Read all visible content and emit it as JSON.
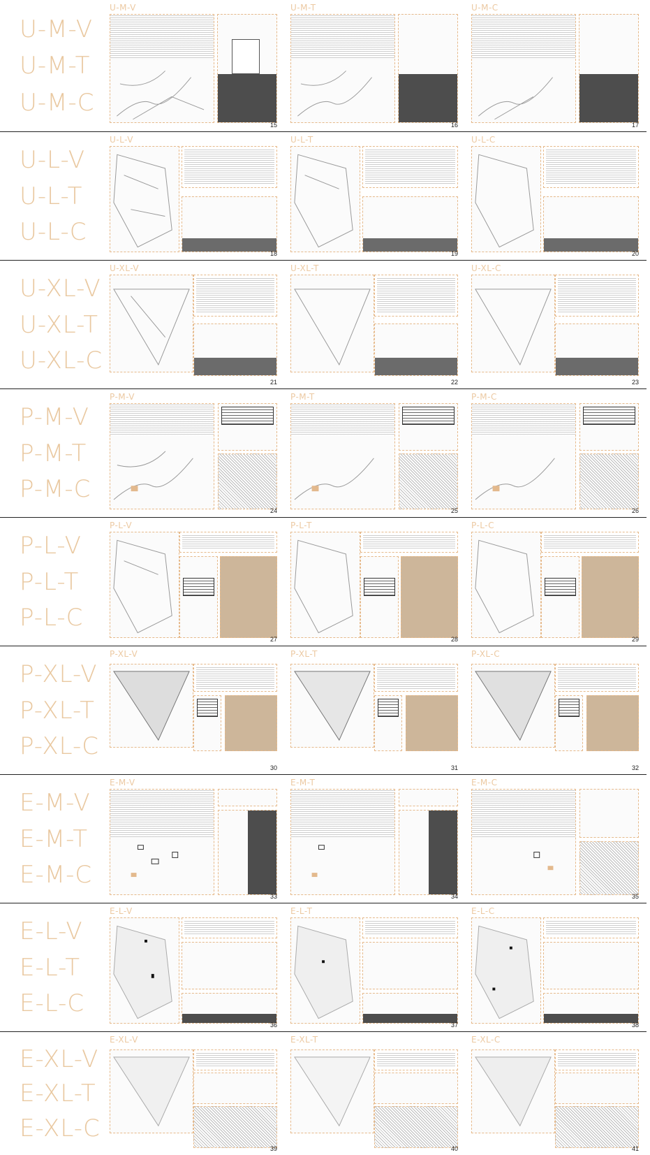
{
  "rows": [
    {
      "labels": [
        "U-M-V",
        "U-M-T",
        "U-M-C"
      ],
      "panels": [
        {
          "title": "U-M-V",
          "num": "15"
        },
        {
          "title": "U-M-T",
          "num": "16"
        },
        {
          "title": "U-M-C",
          "num": "17"
        }
      ]
    },
    {
      "labels": [
        "U-L-V",
        "U-L-T",
        "U-L-C"
      ],
      "panels": [
        {
          "title": "U-L-V",
          "num": "18"
        },
        {
          "title": "U-L-T",
          "num": "19"
        },
        {
          "title": "U-L-C",
          "num": "20"
        }
      ]
    },
    {
      "labels": [
        "U-XL-V",
        "U-XL-T",
        "U-XL-C"
      ],
      "panels": [
        {
          "title": "U-XL-V",
          "num": "21"
        },
        {
          "title": "U-XL-T",
          "num": "22"
        },
        {
          "title": "U-XL-C",
          "num": "23"
        }
      ]
    },
    {
      "labels": [
        "P-M-V",
        "P-M-T",
        "P-M-C"
      ],
      "panels": [
        {
          "title": "P-M-V",
          "num": "24"
        },
        {
          "title": "P-M-T",
          "num": "25"
        },
        {
          "title": "P-M-C",
          "num": "26"
        }
      ]
    },
    {
      "labels": [
        "P-L-V",
        "P-L-T",
        "P-L-C"
      ],
      "panels": [
        {
          "title": "P-L-V",
          "num": "27"
        },
        {
          "title": "P-L-T",
          "num": "28"
        },
        {
          "title": "P-L-C",
          "num": "29"
        }
      ]
    },
    {
      "labels": [
        "P-XL-V",
        "P-XL-T",
        "P-XL-C"
      ],
      "panels": [
        {
          "title": "P-XL-V",
          "num": "30"
        },
        {
          "title": "P-XL-T",
          "num": "31"
        },
        {
          "title": "P-XL-C",
          "num": "32"
        }
      ]
    },
    {
      "labels": [
        "E-M-V",
        "E-M-T",
        "E-M-C"
      ],
      "panels": [
        {
          "title": "E-M-V",
          "num": "33"
        },
        {
          "title": "E-M-T",
          "num": "34"
        },
        {
          "title": "E-M-C",
          "num": "35"
        }
      ]
    },
    {
      "labels": [
        "E-L-V",
        "E-L-T",
        "E-L-C"
      ],
      "panels": [
        {
          "title": "E-L-V",
          "num": "36"
        },
        {
          "title": "E-L-T",
          "num": "37"
        },
        {
          "title": "E-L-C",
          "num": "38"
        }
      ]
    },
    {
      "labels": [
        "E-XL-V",
        "E-XL-T",
        "E-XL-C"
      ],
      "panels": [
        {
          "title": "E-XL-V",
          "num": "39"
        },
        {
          "title": "E-XL-T",
          "num": "40"
        },
        {
          "title": "E-XL-C",
          "num": "41"
        }
      ]
    }
  ],
  "colors": {
    "accent": "#e9c8a0",
    "frame": "#e6b98a",
    "divider": "#222222"
  }
}
